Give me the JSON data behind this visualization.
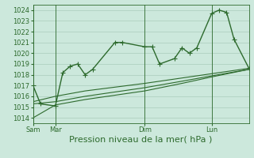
{
  "background_color": "#cce8dc",
  "grid_color": "#aaccbb",
  "line_color": "#2d6a2d",
  "title": "Pression niveau de la mer( hPa )",
  "ylim": [
    1013.5,
    1024.5
  ],
  "yticks": [
    1014,
    1015,
    1016,
    1017,
    1018,
    1019,
    1020,
    1021,
    1022,
    1023,
    1024
  ],
  "day_labels": [
    "Sam",
    "Mar",
    "Dim",
    "Lun"
  ],
  "day_positions": [
    0,
    1.5,
    7.5,
    12
  ],
  "xlim": [
    0,
    14.5
  ],
  "series1_x": [
    0,
    0.5,
    1.5,
    2.0,
    2.5,
    3.0,
    3.5,
    4.0,
    5.5,
    6.0,
    7.5,
    8.0,
    8.5,
    9.5,
    10.0,
    10.5,
    11.0,
    12.0,
    12.5,
    13.0,
    13.5,
    14.5
  ],
  "series1_y": [
    1017.0,
    1015.3,
    1015.1,
    1018.2,
    1018.8,
    1019.0,
    1018.0,
    1018.5,
    1021.0,
    1021.0,
    1020.6,
    1020.6,
    1019.0,
    1019.5,
    1020.5,
    1020.0,
    1020.5,
    1023.7,
    1024.0,
    1023.8,
    1021.3,
    1018.6
  ],
  "series2_x": [
    0,
    1.5,
    3.5,
    7.5,
    10.0,
    12.0,
    14.5
  ],
  "series2_y": [
    1015.3,
    1015.5,
    1016.0,
    1016.8,
    1017.4,
    1017.9,
    1018.5
  ],
  "series3_x": [
    0,
    1.5,
    3.5,
    7.5,
    10.0,
    12.0,
    14.5
  ],
  "series3_y": [
    1014.0,
    1015.2,
    1015.7,
    1016.5,
    1017.2,
    1017.8,
    1018.5
  ],
  "series4_x": [
    0,
    1.5,
    3.5,
    7.5,
    10.0,
    12.0,
    14.5
  ],
  "series4_y": [
    1015.5,
    1016.0,
    1016.5,
    1017.2,
    1017.7,
    1018.1,
    1018.6
  ],
  "marker_size": 2.5,
  "linewidth": 1.0,
  "thin_linewidth": 0.8,
  "title_fontsize": 8,
  "tick_fontsize": 6
}
